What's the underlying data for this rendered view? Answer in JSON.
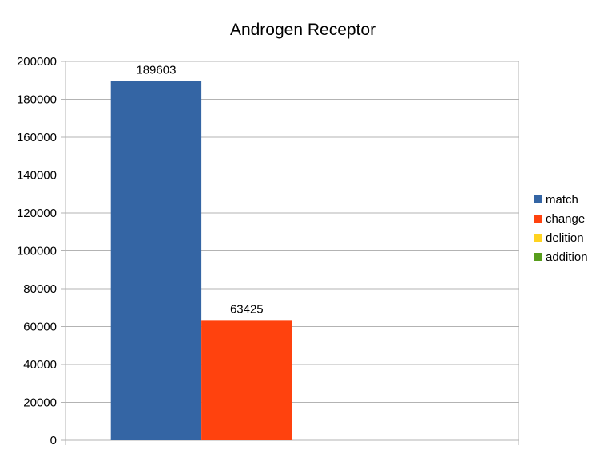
{
  "chart_data": {
    "type": "bar",
    "title": "Androgen Receptor",
    "xlabel": "",
    "ylabel": "",
    "ylim": [
      0,
      200000
    ],
    "yticks": [
      0,
      20000,
      40000,
      60000,
      80000,
      100000,
      120000,
      140000,
      160000,
      180000,
      200000
    ],
    "ytick_labels": [
      "0",
      "20000",
      "40000",
      "60000",
      "80000",
      "100000",
      "120000",
      "140000",
      "160000",
      "180000",
      "200000"
    ],
    "categories": [
      ""
    ],
    "grid": true,
    "legend_position": "right",
    "series": [
      {
        "name": "match",
        "values": [
          189603
        ],
        "color": "#3465a4",
        "data_label": "189603"
      },
      {
        "name": "change",
        "values": [
          63425
        ],
        "color": "#ff420e",
        "data_label": "63425"
      },
      {
        "name": "delition",
        "values": [
          0
        ],
        "color": "#ffd320",
        "data_label": ""
      },
      {
        "name": "addition",
        "values": [
          0
        ],
        "color": "#579d1c",
        "data_label": ""
      }
    ]
  }
}
